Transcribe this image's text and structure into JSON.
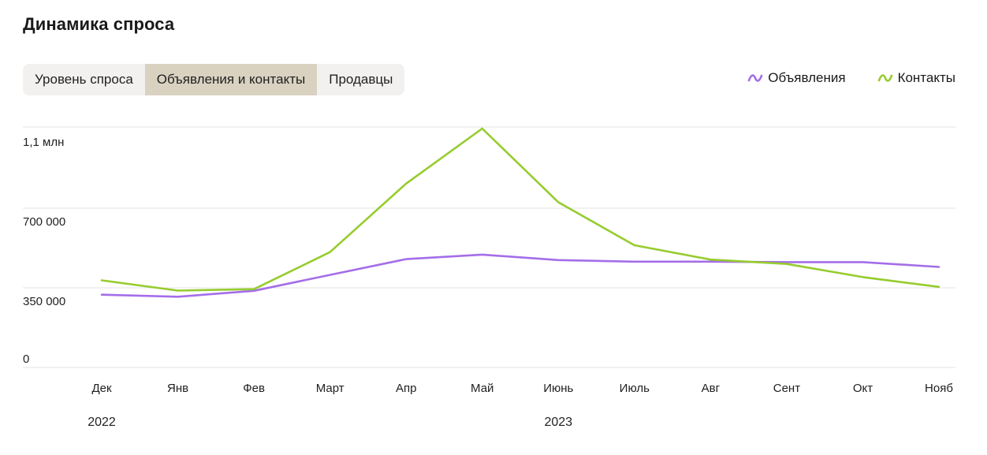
{
  "header": {
    "title": "Динамика спроса"
  },
  "tabs": [
    {
      "label": "Уровень спроса",
      "active": false
    },
    {
      "label": "Объявления и контакты",
      "active": true
    },
    {
      "label": "Продавцы",
      "active": false
    }
  ],
  "colors": {
    "series_1": "#a46ee8",
    "series_2": "#96cc2e",
    "grid": "#e3e3e3"
  },
  "chart_data": {
    "type": "line",
    "categories": [
      "Дек",
      "Янв",
      "Фев",
      "Март",
      "Апр",
      "Май",
      "Июнь",
      "Июль",
      "Авг",
      "Сент",
      "Окт",
      "Нояб"
    ],
    "year_labels": [
      {
        "label": "2022",
        "category_index": 0
      },
      {
        "label": "2023",
        "category_index": 6
      }
    ],
    "y_ticks": [
      {
        "value": 0,
        "label": "0"
      },
      {
        "value": 350000,
        "label": "350 000"
      },
      {
        "value": 700000,
        "label": "700 000"
      },
      {
        "value": 1050000,
        "label": "1,1 млн"
      }
    ],
    "ylim": [
      0,
      1050000
    ],
    "grid": true,
    "legend_position": "top-right",
    "series": [
      {
        "name": "Объявления",
        "color": "#a46ee8",
        "values": [
          320000,
          311000,
          337000,
          407000,
          476000,
          496000,
          472000,
          465000,
          465000,
          463000,
          463000,
          442000
        ]
      },
      {
        "name": "Контакты",
        "color": "#96cc2e",
        "values": [
          383000,
          338000,
          344000,
          507000,
          808000,
          1050000,
          726000,
          537000,
          474000,
          455000,
          397000,
          354000
        ]
      }
    ]
  }
}
